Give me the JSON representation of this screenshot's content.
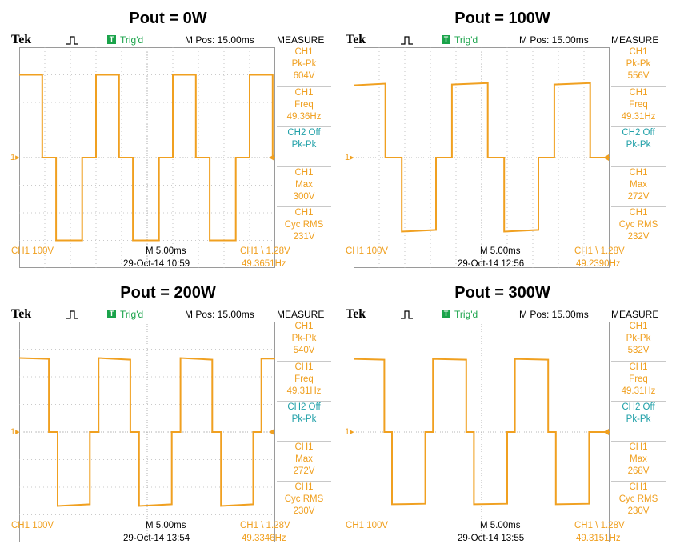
{
  "chart_data": [
    {
      "type": "line",
      "title": "Pout = 0W",
      "brand": "Tek",
      "trigger_status": "Trig'd",
      "trigger_badge": "T",
      "m_pos": "M Pos: 15.00ms",
      "measure_header": "MEASURE",
      "measurements": [
        {
          "ch": "CH1",
          "label": "Pk-Pk",
          "value": "604V",
          "color": "#f0a020"
        },
        {
          "ch": "CH1",
          "label": "Freq",
          "value": "49.36Hz",
          "color": "#f0a020"
        },
        {
          "ch": "CH2 Off",
          "label": "Pk-Pk",
          "value": "",
          "color": "#20a0a8"
        },
        {
          "ch": "CH1",
          "label": "Max",
          "value": "300V",
          "color": "#f0a020"
        },
        {
          "ch": "CH1",
          "label": "Cyc RMS",
          "value": "231V",
          "color": "#f0a020"
        }
      ],
      "ch1_scale": "CH1  100V",
      "timebase": "M 5.00ms",
      "trigger_info": "CH1 \\ 1.28V",
      "datetime": "29-Oct-14 10:59",
      "trig_freq": "49.3651Hz",
      "channel_marker": "1",
      "xlim": [
        0,
        50
      ],
      "ylim": [
        -400,
        400
      ],
      "series": [
        {
          "x": [
            0,
            4.5,
            4.5,
            7.2,
            7.2,
            12.3,
            12.3,
            15,
            15,
            19.5,
            19.5,
            22.2,
            22.2,
            27.3,
            27.3,
            30,
            30,
            34.5,
            34.5,
            37.2,
            37.2,
            42.3,
            42.3,
            45,
            45,
            49.5,
            49.5,
            50
          ],
          "y": [
            300,
            300,
            0,
            0,
            -300,
            -300,
            0,
            0,
            300,
            300,
            0,
            0,
            -300,
            -300,
            0,
            0,
            300,
            300,
            0,
            0,
            -300,
            -300,
            0,
            0,
            300,
            300,
            0,
            0
          ]
        }
      ]
    },
    {
      "type": "line",
      "title": "Pout = 100W",
      "brand": "Tek",
      "trigger_status": "Trig'd",
      "trigger_badge": "T",
      "m_pos": "M Pos: 15.00ms",
      "measure_header": "MEASURE",
      "measurements": [
        {
          "ch": "CH1",
          "label": "Pk-Pk",
          "value": "556V",
          "color": "#f0a020"
        },
        {
          "ch": "CH1",
          "label": "Freq",
          "value": "49.31Hz",
          "color": "#f0a020"
        },
        {
          "ch": "CH2 Off",
          "label": "Pk-Pk",
          "value": "",
          "color": "#20a0a8"
        },
        {
          "ch": "CH1",
          "label": "Max",
          "value": "272V",
          "color": "#f0a020"
        },
        {
          "ch": "CH1",
          "label": "Cyc RMS",
          "value": "232V",
          "color": "#f0a020"
        }
      ],
      "ch1_scale": "CH1  100V",
      "timebase": "M 5.00ms",
      "trigger_info": "CH1 \\ 1.28V",
      "datetime": "29-Oct-14 12:56",
      "trig_freq": "49.2390Hz",
      "channel_marker": "1",
      "xlim": [
        0,
        50
      ],
      "ylim": [
        -400,
        400
      ],
      "series": [
        {
          "x": [
            0,
            6.2,
            6.2,
            9.4,
            9.4,
            16.1,
            16.1,
            19.2,
            19.2,
            26.2,
            26.2,
            29.4,
            29.4,
            36.1,
            36.1,
            39.2,
            39.2,
            46.2,
            46.2,
            49.5,
            49.5,
            50
          ],
          "y": [
            262,
            268,
            0,
            0,
            -268,
            -262,
            0,
            0,
            265,
            270,
            0,
            0,
            -268,
            -262,
            0,
            0,
            265,
            270,
            0,
            0,
            0,
            0
          ]
        }
      ]
    },
    {
      "type": "line",
      "title": "Pout = 200W",
      "brand": "Tek",
      "trigger_status": "Trig'd",
      "trigger_badge": "T",
      "m_pos": "M Pos: 15.00ms",
      "measure_header": "MEASURE",
      "measurements": [
        {
          "ch": "CH1",
          "label": "Pk-Pk",
          "value": "540V",
          "color": "#f0a020"
        },
        {
          "ch": "CH1",
          "label": "Freq",
          "value": "49.31Hz",
          "color": "#f0a020"
        },
        {
          "ch": "CH2 Off",
          "label": "Pk-Pk",
          "value": "",
          "color": "#20a0a8"
        },
        {
          "ch": "CH1",
          "label": "Max",
          "value": "272V",
          "color": "#f0a020"
        },
        {
          "ch": "CH1",
          "label": "Cyc RMS",
          "value": "230V",
          "color": "#f0a020"
        }
      ],
      "ch1_scale": "CH1  100V",
      "timebase": "M 5.00ms",
      "trigger_info": "CH1 \\ 1.28V",
      "datetime": "29-Oct-14 13:54",
      "trig_freq": "49.3346Hz",
      "channel_marker": "1",
      "xlim": [
        0,
        50
      ],
      "ylim": [
        -400,
        400
      ],
      "series": [
        {
          "x": [
            0,
            5.8,
            5.8,
            7.5,
            7.5,
            13.8,
            13.8,
            15.5,
            15.5,
            21.7,
            21.7,
            23.4,
            23.4,
            29.8,
            29.8,
            31.5,
            31.5,
            37.7,
            37.7,
            39.4,
            39.4,
            45.7,
            45.7,
            47.3,
            47.3,
            50
          ],
          "y": [
            268,
            265,
            0,
            0,
            -268,
            -262,
            0,
            0,
            268,
            262,
            0,
            0,
            -268,
            -262,
            0,
            0,
            268,
            262,
            0,
            0,
            -268,
            -262,
            0,
            0,
            266,
            266
          ]
        }
      ]
    },
    {
      "type": "line",
      "title": "Pout = 300W",
      "brand": "Tek",
      "trigger_status": "Trig'd",
      "trigger_badge": "T",
      "m_pos": "M Pos: 15.00ms",
      "measure_header": "MEASURE",
      "measurements": [
        {
          "ch": "CH1",
          "label": "Pk-Pk",
          "value": "532V",
          "color": "#f0a020"
        },
        {
          "ch": "CH1",
          "label": "Freq",
          "value": "49.31Hz",
          "color": "#f0a020"
        },
        {
          "ch": "CH2 Off",
          "label": "Pk-Pk",
          "value": "",
          "color": "#20a0a8"
        },
        {
          "ch": "CH1",
          "label": "Max",
          "value": "268V",
          "color": "#f0a020"
        },
        {
          "ch": "CH1",
          "label": "Cyc RMS",
          "value": "230V",
          "color": "#f0a020"
        }
      ],
      "ch1_scale": "CH1  100V",
      "timebase": "M 5.00ms",
      "trigger_info": "CH1 \\ 1.28V",
      "datetime": "29-Oct-14 13:55",
      "trig_freq": "49.3151Hz",
      "channel_marker": "1",
      "xlim": [
        0,
        50
      ],
      "ylim": [
        -400,
        400
      ],
      "series": [
        {
          "x": [
            0,
            6.0,
            6.0,
            7.5,
            7.5,
            14.0,
            14.0,
            15.5,
            15.5,
            22.0,
            22.0,
            23.5,
            23.5,
            30.0,
            30.0,
            31.5,
            31.5,
            38.0,
            38.0,
            39.5,
            39.5,
            46.0,
            46.0,
            47.5,
            47.5,
            50
          ],
          "y": [
            265,
            262,
            0,
            0,
            -262,
            -260,
            0,
            0,
            265,
            262,
            0,
            0,
            -262,
            -260,
            0,
            0,
            265,
            262,
            0,
            0,
            -262,
            -260,
            0,
            0,
            0,
            0
          ]
        }
      ]
    }
  ]
}
